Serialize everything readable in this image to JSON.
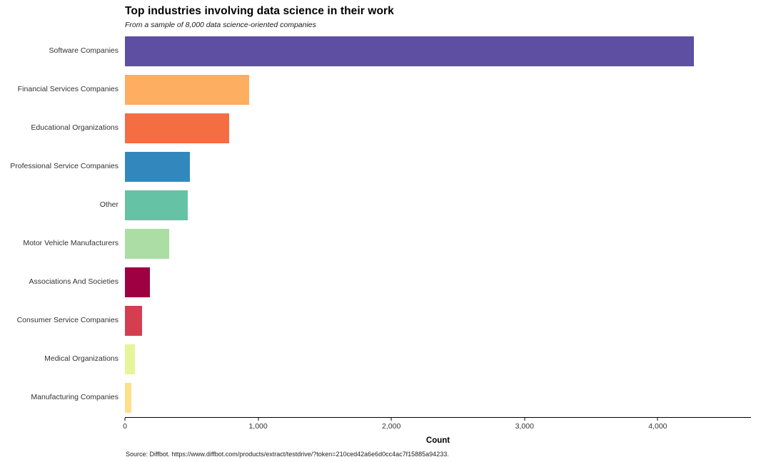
{
  "chart": {
    "title": "Top industries involving data science in their work",
    "subtitle": "From a sample of 8,000 data science-oriented companies",
    "xlabel": "Count",
    "source": "Source: Diffbot. https://www.diffbot.com/products/extract/testdrive/?token=210ced42a6e6d0cc4ac7f15885a94233."
  },
  "chart_data": {
    "type": "bar",
    "orientation": "horizontal",
    "title": "Top industries involving data science in their work",
    "subtitle": "From a sample of 8,000 data science-oriented companies",
    "xlabel": "Count",
    "ylabel": "",
    "categories": [
      "Software Companies",
      "Financial Services Companies",
      "Educational Organizations",
      "Professional Service Companies",
      "Other",
      "Motor Vehicle Manufacturers",
      "Associations And Societies",
      "Consumer Service Companies",
      "Medical Organizations",
      "Manufacturing Companies"
    ],
    "values": [
      4270,
      930,
      780,
      490,
      470,
      330,
      190,
      130,
      75,
      50
    ],
    "colors": [
      "#5e4fa2",
      "#fdae61",
      "#f46d43",
      "#3288bd",
      "#66c2a5",
      "#abdda4",
      "#9e0142",
      "#d53e4f",
      "#e6f598",
      "#fee08b"
    ],
    "xlim": [
      0,
      4700
    ],
    "xticks": [
      0,
      1000,
      2000,
      3000,
      4000
    ],
    "xtick_labels": [
      "0",
      "1,000",
      "2,000",
      "3,000",
      "4,000"
    ],
    "grid": false,
    "legend": "none"
  }
}
